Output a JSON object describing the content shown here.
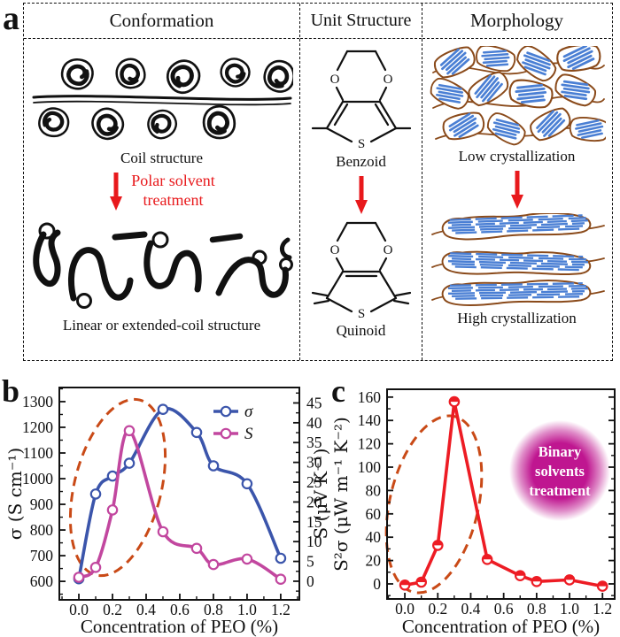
{
  "panel_labels": {
    "a": "a",
    "b": "b",
    "c": "c"
  },
  "panel_a": {
    "columns": [
      {
        "title": "Conformation",
        "top_caption": "Coil structure",
        "arrow_lines": [
          "Polar solvent",
          "treatment"
        ],
        "bottom_caption": "Linear or extended-coil structure"
      },
      {
        "title": "Unit Structure",
        "top_caption": "Benzoid",
        "bottom_caption": "Quinoid"
      },
      {
        "title": "Morphology",
        "top_caption": "Low crystallization",
        "bottom_caption": "High crystallization"
      }
    ],
    "atoms": {
      "o": "O",
      "s": "S"
    }
  },
  "chart_data": [
    {
      "panel": "b",
      "type": "line",
      "title": "",
      "xlabel": "Concentration of PEO (%)",
      "ylabels": [
        "σ (S cm⁻¹)"
      ],
      "xlim": [
        -0.116,
        1.311
      ],
      "xticks": [
        0.0,
        0.2,
        0.4,
        0.6,
        0.8,
        1.0,
        1.2
      ],
      "x_minor": 0.1,
      "axes": {
        "left": {
          "lim": [
            528,
            1355
          ],
          "ticks": [
            600,
            700,
            800,
            900,
            1000,
            1100,
            1200,
            1300
          ],
          "minor": 50
        },
        "right": {
          "lim": [
            -4.7,
            48.9
          ],
          "ticks": [
            0,
            5,
            10,
            15,
            20,
            25,
            30,
            35,
            40,
            45
          ],
          "minor": 2.5,
          "label": "S (μV K⁻¹)"
        }
      },
      "series": [
        {
          "name": "σ",
          "axis": "left",
          "color": "#3b55ab",
          "marker": "open-circle",
          "smooth": true,
          "x": [
            0.0,
            0.1,
            0.2,
            0.3,
            0.5,
            0.7,
            0.8,
            1.0,
            1.2
          ],
          "y": [
            610,
            940,
            1010,
            1060,
            1270,
            1180,
            1050,
            980,
            690
          ]
        },
        {
          "name": "S",
          "axis": "right",
          "color": "#c2479f",
          "marker": "open-circle",
          "smooth": true,
          "x": [
            0.0,
            0.1,
            0.2,
            0.3,
            0.5,
            0.7,
            0.8,
            1.0,
            1.2
          ],
          "y": [
            1,
            3.5,
            18,
            38,
            12.5,
            8.3,
            4.2,
            5.6,
            0.5
          ]
        }
      ],
      "legend": [
        "σ",
        "S"
      ],
      "ellipse": {
        "color": "#c94a17"
      }
    },
    {
      "panel": "c",
      "type": "line",
      "title": "",
      "xlabel": "Concentration of PEO (%)",
      "ylabels": [
        "S²σ (μW m⁻¹ K⁻²)"
      ],
      "xlim": [
        -0.108,
        1.274
      ],
      "xticks": [
        0.0,
        0.2,
        0.4,
        0.6,
        0.8,
        1.0,
        1.2
      ],
      "x_minor": 0.1,
      "axes": {
        "left": {
          "lim": [
            -12.9,
            166.7
          ],
          "ticks": [
            0,
            20,
            40,
            60,
            80,
            100,
            120,
            140,
            160
          ],
          "minor": 10
        }
      },
      "mirror_right": true,
      "series": [
        {
          "name": "S²σ",
          "axis": "left",
          "color": "#ed1c24",
          "marker": "half-circle",
          "smooth": false,
          "x": [
            0.0,
            0.1,
            0.2,
            0.3,
            0.5,
            0.7,
            0.8,
            1.0,
            1.2
          ],
          "y": [
            -1,
            1.5,
            33,
            156,
            21,
            7,
            2,
            3.5,
            -2
          ]
        }
      ],
      "ellipse": {
        "color": "#c94a17"
      },
      "blob": {
        "lines": [
          "Binary",
          "solvents",
          "treatment"
        ],
        "color": "#bf1690"
      }
    }
  ],
  "colors": {
    "sigma_blue": "#3b55ab",
    "seebeck_magenta": "#c2479f",
    "ellipse_orange": "#c94a17",
    "power_red": "#ed1c24",
    "blob_magenta": "#bf1690",
    "crystal_blue": "#4a7fd4",
    "outline_brown": "#8a4a1a",
    "arrow_red": "#e8191c"
  }
}
